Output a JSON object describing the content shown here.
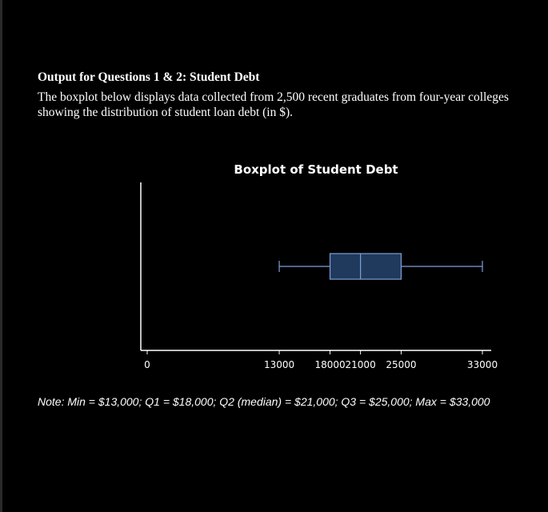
{
  "heading": "Output for Questions 1 & 2: Student Debt",
  "description": "The boxplot below displays data collected from 2,500 recent graduates from four-year colleges showing the distribution of student loan debt (in $).",
  "note": "Note: Min = $13,000; Q1 = $18,000; Q2 (median) = $21,000; Q3 = $25,000; Max = $33,000",
  "chart_data": {
    "type": "boxplot",
    "title": "Boxplot of Student Debt",
    "orientation": "horizontal",
    "min": 13000,
    "q1": 18000,
    "median": 21000,
    "q3": 25000,
    "max": 33000,
    "xlim": [
      0,
      33000
    ],
    "xticks": [
      0,
      13000,
      18000,
      21000,
      25000,
      33000
    ],
    "xtick_labels": [
      "0",
      "13000",
      "18000",
      "21000",
      "25000",
      "33000"
    ],
    "xlabel": "",
    "ylabel": "",
    "grid": false,
    "colors": {
      "box_fill": "#1f3a5c",
      "box_stroke": "#7f9fd8",
      "axis": "#ffffff"
    }
  }
}
